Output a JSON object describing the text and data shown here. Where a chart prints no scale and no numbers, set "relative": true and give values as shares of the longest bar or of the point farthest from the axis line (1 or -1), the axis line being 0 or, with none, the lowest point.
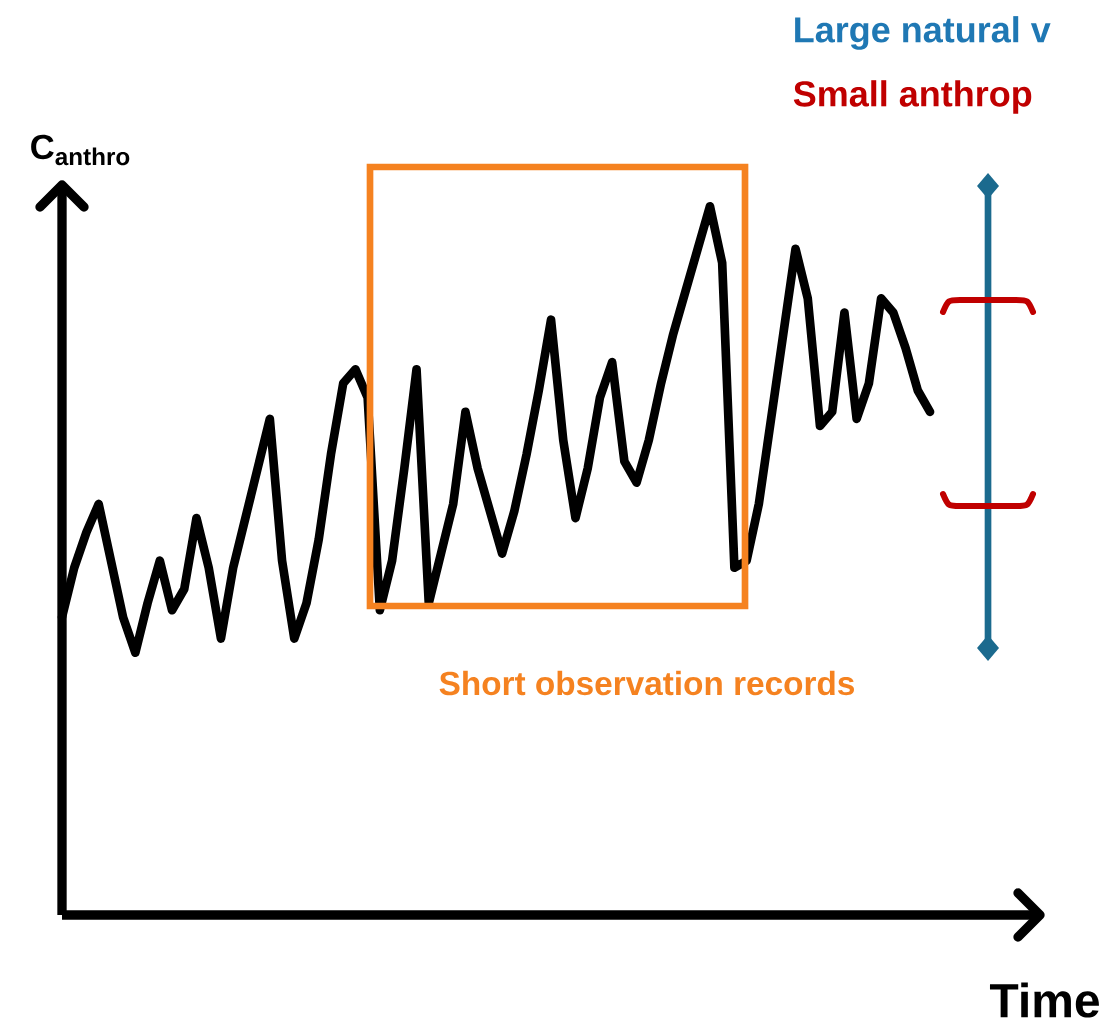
{
  "chart_data": {
    "type": "line",
    "relative": true,
    "xlabel": "Time",
    "ylabel": "C$_{anthro}$",
    "categories": [
      null,
      null,
      null,
      null,
      null,
      null,
      null,
      null,
      null,
      null,
      null,
      null,
      null,
      null,
      null,
      null,
      null,
      null,
      null,
      null,
      null,
      null,
      null,
      null,
      null,
      null,
      null,
      null,
      null,
      null,
      null,
      null,
      null,
      null,
      null,
      null,
      null,
      null,
      null,
      null,
      null,
      null,
      null,
      null,
      null,
      null,
      null,
      null,
      null,
      null,
      null,
      null,
      null,
      null,
      null,
      null,
      null,
      null,
      null,
      null,
      null,
      null,
      null,
      null,
      null,
      null,
      null,
      null,
      null,
      null,
      null,
      null
    ],
    "values": [
      0.42,
      0.49,
      0.54,
      0.58,
      0.5,
      0.42,
      0.37,
      0.44,
      0.5,
      0.43,
      0.46,
      0.56,
      0.49,
      0.39,
      0.49,
      0.56,
      0.63,
      0.7,
      0.5,
      0.39,
      0.44,
      0.53,
      0.65,
      0.75,
      0.77,
      0.73,
      0.43,
      0.5,
      0.63,
      0.77,
      0.44,
      0.51,
      0.58,
      0.71,
      0.63,
      0.57,
      0.51,
      0.57,
      0.65,
      0.74,
      0.84,
      0.67,
      0.56,
      0.63,
      0.73,
      0.78,
      0.64,
      0.61,
      0.67,
      0.75,
      0.82,
      0.88,
      0.94,
      1,
      0.92,
      0.49,
      0.5,
      0.58,
      0.7,
      0.82,
      0.94,
      0.87,
      0.69,
      0.71,
      0.85,
      0.7,
      0.75,
      0.87,
      0.85,
      0.8,
      0.74,
      0.71
    ],
    "color": "#000000",
    "annotations": [
      "Large natural v",
      "Small anthrop",
      "Short observation records"
    ]
  }
}
